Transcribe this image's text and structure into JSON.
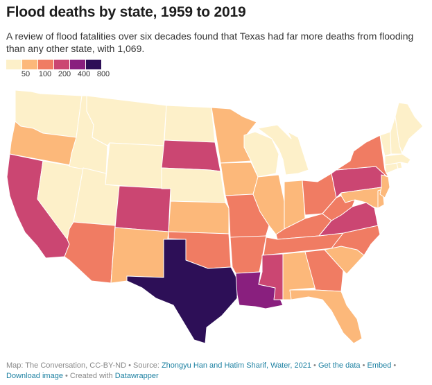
{
  "title": "Flood deaths by state, 1959 to 2019",
  "subtitle": "A review of flood fatalities over six decades found that Texas had far more deaths from flooding than any other state, with 1,069.",
  "legend": {
    "colors": [
      "#fdf0c9",
      "#fcb87a",
      "#f07c63",
      "#cb4672",
      "#891f7e",
      "#2d0f57"
    ],
    "ticks": [
      "50",
      "100",
      "200",
      "400",
      "800"
    ]
  },
  "map_data": {
    "type": "choropleth",
    "bins": [
      {
        "range": "under 50",
        "color": "#fdf0c9"
      },
      {
        "range": "50-100",
        "color": "#fcb87a"
      },
      {
        "range": "100-200",
        "color": "#f07c63"
      },
      {
        "range": "200-400",
        "color": "#cb4672"
      },
      {
        "range": "400-800",
        "color": "#891f7e"
      },
      {
        "range": "800+",
        "color": "#2d0f57"
      }
    ],
    "states": [
      {
        "name": "Texas",
        "bin": 5,
        "value": 1069
      },
      {
        "name": "Louisiana",
        "bin": 4
      },
      {
        "name": "California",
        "bin": 3
      },
      {
        "name": "Colorado",
        "bin": 3
      },
      {
        "name": "South Dakota",
        "bin": 3
      },
      {
        "name": "Pennsylvania",
        "bin": 3
      },
      {
        "name": "Virginia",
        "bin": 3
      },
      {
        "name": "Mississippi",
        "bin": 3
      },
      {
        "name": "Arizona",
        "bin": 2
      },
      {
        "name": "Missouri",
        "bin": 2
      },
      {
        "name": "Arkansas",
        "bin": 2
      },
      {
        "name": "Oklahoma",
        "bin": 2
      },
      {
        "name": "Tennessee",
        "bin": 2
      },
      {
        "name": "Kentucky",
        "bin": 2
      },
      {
        "name": "Ohio",
        "bin": 2
      },
      {
        "name": "West Virginia",
        "bin": 2
      },
      {
        "name": "North Carolina",
        "bin": 2
      },
      {
        "name": "Georgia",
        "bin": 2
      },
      {
        "name": "New York",
        "bin": 2
      },
      {
        "name": "Oregon",
        "bin": 1
      },
      {
        "name": "Minnesota",
        "bin": 1
      },
      {
        "name": "Iowa",
        "bin": 1
      },
      {
        "name": "Illinois",
        "bin": 1
      },
      {
        "name": "Indiana",
        "bin": 1
      },
      {
        "name": "Kansas",
        "bin": 1
      },
      {
        "name": "New Mexico",
        "bin": 1
      },
      {
        "name": "Alabama",
        "bin": 1
      },
      {
        "name": "South Carolina",
        "bin": 1
      },
      {
        "name": "Florida",
        "bin": 1
      },
      {
        "name": "New Jersey",
        "bin": 1
      },
      {
        "name": "Maryland",
        "bin": 1
      },
      {
        "name": "Delaware",
        "bin": 1
      },
      {
        "name": "Washington",
        "bin": 0
      },
      {
        "name": "Idaho",
        "bin": 0
      },
      {
        "name": "Montana",
        "bin": 0
      },
      {
        "name": "Wyoming",
        "bin": 0
      },
      {
        "name": "Nevada",
        "bin": 0
      },
      {
        "name": "Utah",
        "bin": 0
      },
      {
        "name": "North Dakota",
        "bin": 0
      },
      {
        "name": "Nebraska",
        "bin": 0
      },
      {
        "name": "Wisconsin",
        "bin": 0
      },
      {
        "name": "Michigan",
        "bin": 0
      },
      {
        "name": "Maine",
        "bin": 0
      },
      {
        "name": "New Hampshire",
        "bin": 0
      },
      {
        "name": "Vermont",
        "bin": 0
      },
      {
        "name": "Massachusetts",
        "bin": 0
      },
      {
        "name": "Connecticut",
        "bin": 0
      },
      {
        "name": "Rhode Island",
        "bin": 0
      }
    ]
  },
  "footer": {
    "source_prefix": "Map: The Conversation, CC-BY-ND • Source: ",
    "source_link": "Zhongyu Han and Hatim Sharif, Water, 2021",
    "sep1": " • ",
    "get_data": "Get the data",
    "sep2": " • ",
    "embed": "Embed",
    "sep3": " • ",
    "download": "Download image",
    "created_prefix": " • Created with ",
    "datawrapper": "Datawrapper"
  }
}
